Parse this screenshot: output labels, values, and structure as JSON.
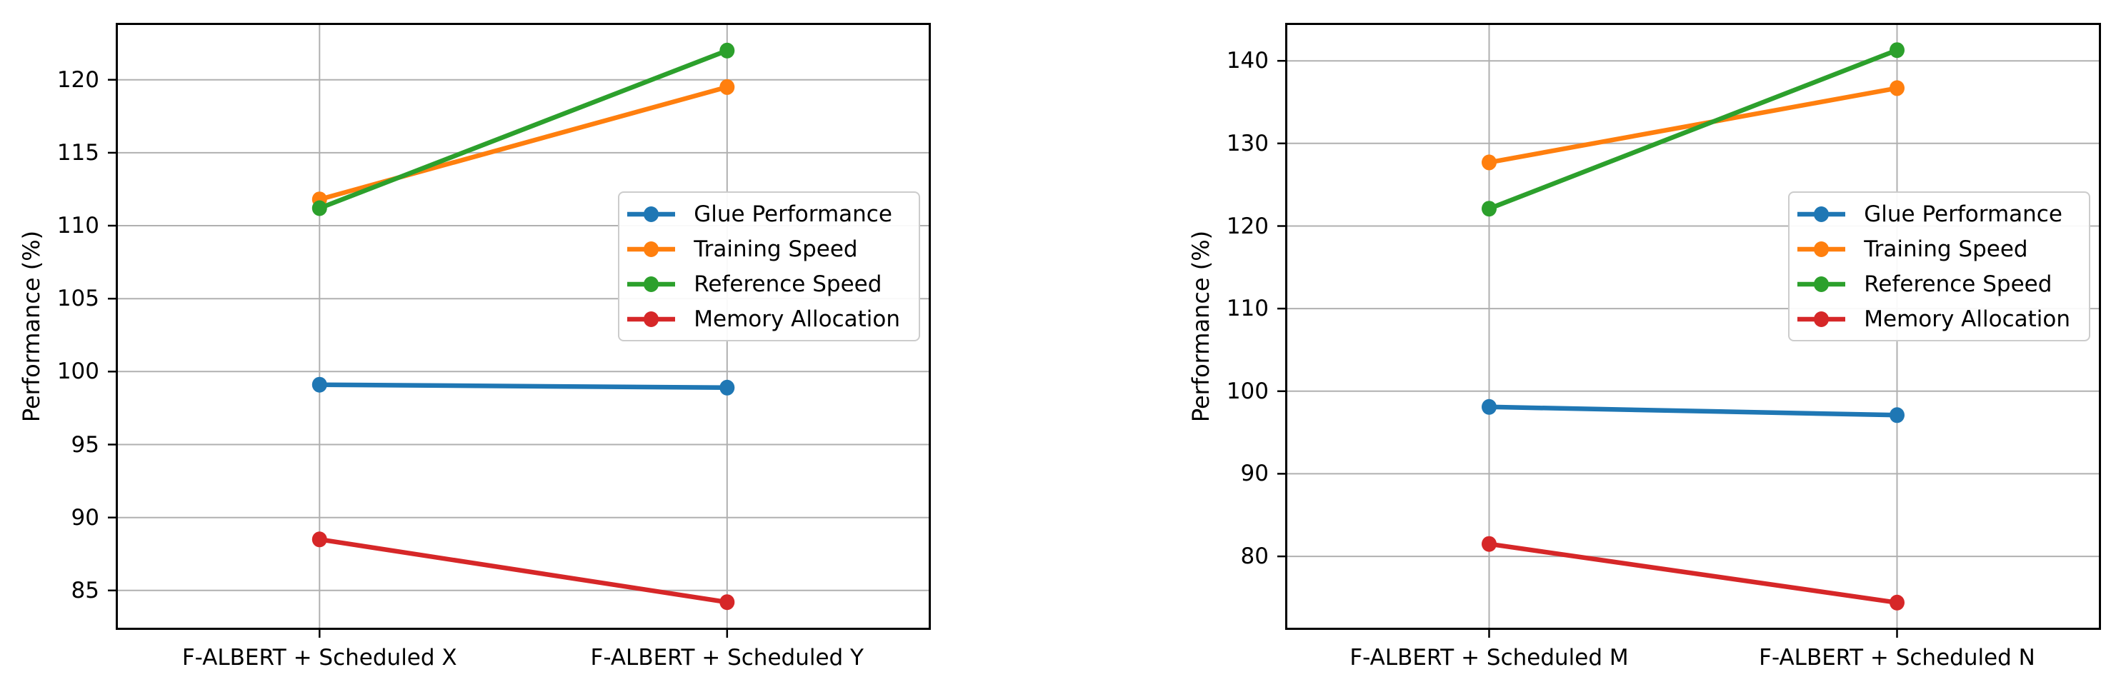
{
  "figure": {
    "background": "#ffffff",
    "grid_color": "#b0b0b0",
    "spine_color": "#000000",
    "text_color": "#000000"
  },
  "chart_data": [
    {
      "type": "line",
      "title": "",
      "ylabel": "Performance (%)",
      "categories": [
        "F-ALBERT + Scheduled X",
        "F-ALBERT + Scheduled Y"
      ],
      "yticks": [
        85,
        90,
        95,
        100,
        105,
        110,
        115,
        120
      ],
      "ylim": [
        82.3,
        123.9
      ],
      "grid": true,
      "legend_position": "inside center-right",
      "marker": "circle",
      "series": [
        {
          "name": "Glue Performance",
          "color": "#1f77b4",
          "values": [
            99.1,
            98.9
          ]
        },
        {
          "name": "Training Speed",
          "color": "#ff7f0e",
          "values": [
            111.8,
            119.5
          ]
        },
        {
          "name": "Reference Speed",
          "color": "#2ca02c",
          "values": [
            111.2,
            122.0
          ]
        },
        {
          "name": "Memory Allocation",
          "color": "#d62728",
          "values": [
            88.5,
            84.2
          ]
        }
      ]
    },
    {
      "type": "line",
      "title": "",
      "ylabel": "Performance (%)",
      "categories": [
        "F-ALBERT + Scheduled M",
        "F-ALBERT + Scheduled N"
      ],
      "yticks": [
        80,
        90,
        100,
        110,
        120,
        130,
        140
      ],
      "ylim": [
        71.1,
        144.6
      ],
      "grid": true,
      "legend_position": "inside center-right",
      "marker": "circle",
      "series": [
        {
          "name": "Glue Performance",
          "color": "#1f77b4",
          "values": [
            98.1,
            97.1
          ]
        },
        {
          "name": "Training Speed",
          "color": "#ff7f0e",
          "values": [
            127.7,
            136.7
          ]
        },
        {
          "name": "Reference Speed",
          "color": "#2ca02c",
          "values": [
            122.1,
            141.3
          ]
        },
        {
          "name": "Memory Allocation",
          "color": "#d62728",
          "values": [
            81.5,
            74.4
          ]
        }
      ]
    }
  ]
}
